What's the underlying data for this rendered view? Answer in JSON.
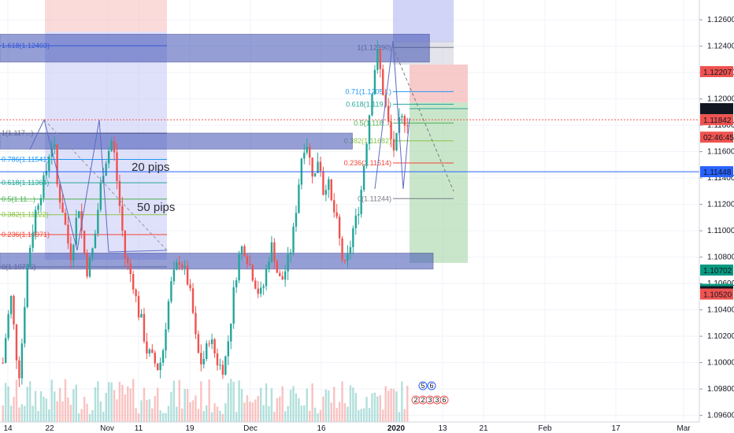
{
  "chart_data": {
    "type": "candlestick",
    "grid": true,
    "x_axis": {
      "ticks": [
        "14",
        "22",
        "Nov",
        "11",
        "19",
        "Dec",
        "16",
        "2020",
        "13",
        "21",
        "Feb",
        "17",
        "Mar"
      ]
    },
    "y_axis": {
      "side": "right",
      "range": [
        1.0955,
        1.1275
      ],
      "ticks": [
        "1.12600",
        "1.12400",
        "1.12200",
        "1.12000",
        "1.11800",
        "1.11600",
        "1.11400",
        "1.11200",
        "1.11000",
        "1.10800",
        "1.10600",
        "1.10400",
        "1.10200",
        "1.10000",
        "1.09800",
        "1.09600"
      ]
    },
    "price_badges": [
      {
        "label": "1.12207",
        "value": 1.12207,
        "color": "#ef5350"
      },
      {
        "label": "1.11926",
        "value": 1.11926,
        "color": "#131722"
      },
      {
        "label": "1.11842",
        "value": 1.11842,
        "color": "#ef5350"
      },
      {
        "label": "02:46:45",
        "value": 1.1171,
        "color": "#ef5350"
      },
      {
        "label": "1.11448",
        "value": 1.11448,
        "color": "#2962ff"
      },
      {
        "label": "1.10702",
        "value": 1.10702,
        "color": "#089981"
      },
      {
        "label": "1.10556",
        "value": 1.10556,
        "color": "#089981"
      },
      {
        "label": "1.10538",
        "value": 1.10538,
        "color": "#131722"
      },
      {
        "label": "1.10520",
        "value": 1.1052,
        "color": "#ef5350"
      }
    ],
    "zones": [
      {
        "top": 1.1249,
        "bottom": 1.1228,
        "x0": 0.0,
        "x1": 0.585,
        "color": "#3f51b5"
      },
      {
        "top": 1.1174,
        "bottom": 1.1162,
        "x0": 0.0,
        "x1": 0.48,
        "color": "#3f51b5"
      },
      {
        "top": 1.1083,
        "bottom": 1.1071,
        "x0": 0.0,
        "x1": 0.59,
        "color": "#3f51b5"
      }
    ],
    "fib_left": {
      "levels": [
        {
          "label": "1.618(1.12403)",
          "value": 1.12403
        },
        {
          "label": "1(1.117...)",
          "value": 1.1174
        },
        {
          "label": "0.786(1.11541)",
          "value": 1.11541
        },
        {
          "label": "0.618(1.11364)",
          "value": 1.11364
        },
        {
          "label": "0.5(1.11...)",
          "value": 1.1124
        },
        {
          "label": "0.382(1.11122)",
          "value": 1.11122
        },
        {
          "label": "0.236(1.10971)",
          "value": 1.10971
        },
        {
          "label": "0(1.10726)",
          "value": 1.10726
        }
      ]
    },
    "fib_right": {
      "levels": [
        {
          "label": "1(1.12390)",
          "value": 1.1239
        },
        {
          "label": "0.71(1.1205...)",
          "value": 1.12055
        },
        {
          "label": "0.618(1.119...)",
          "value": 1.1196
        },
        {
          "label": "0.5(1.118...)",
          "value": 1.11817
        },
        {
          "label": "0.382(1.11682)",
          "value": 1.11682
        },
        {
          "label": "0.236(1.11514)",
          "value": 1.11514
        },
        {
          "label": "0(1.11244)",
          "value": 1.11244
        }
      ]
    },
    "annotations": [
      "20 pips",
      "50 pips"
    ],
    "events_top": [
      "5",
      "6"
    ],
    "events_bottom": [
      "2",
      "2",
      "3",
      "3",
      "6"
    ],
    "close_path": [
      1.1,
      1.103,
      1.105,
      1.101,
      1.099,
      1.104,
      1.108,
      1.11,
      1.112,
      1.113,
      1.114,
      1.116,
      1.117,
      1.113,
      1.112,
      1.11,
      1.108,
      1.11,
      1.112,
      1.109,
      1.107,
      1.108,
      1.11,
      1.113,
      1.115,
      1.116,
      1.117,
      1.114,
      1.111,
      1.108,
      1.107,
      1.106,
      1.104,
      1.103,
      1.101,
      1.1005,
      1.1,
      1.0995,
      1.101,
      1.104,
      1.106,
      1.107,
      1.108,
      1.107,
      1.106,
      1.104,
      1.101,
      1.1,
      1.1005,
      1.102,
      1.101,
      1.1,
      1.0995,
      1.1005,
      1.103,
      1.106,
      1.108,
      1.109,
      1.108,
      1.107,
      1.106,
      1.105,
      1.106,
      1.108,
      1.109,
      1.107,
      1.106,
      1.107,
      1.108,
      1.11,
      1.113,
      1.116,
      1.117,
      1.115,
      1.114,
      1.116,
      1.113,
      1.114,
      1.112,
      1.111,
      1.109,
      1.107,
      1.108,
      1.11,
      1.111,
      1.113,
      1.116,
      1.119,
      1.122,
      1.1235,
      1.121,
      1.119,
      1.117,
      1.116,
      1.118,
      1.1185,
      1.1184
    ]
  }
}
